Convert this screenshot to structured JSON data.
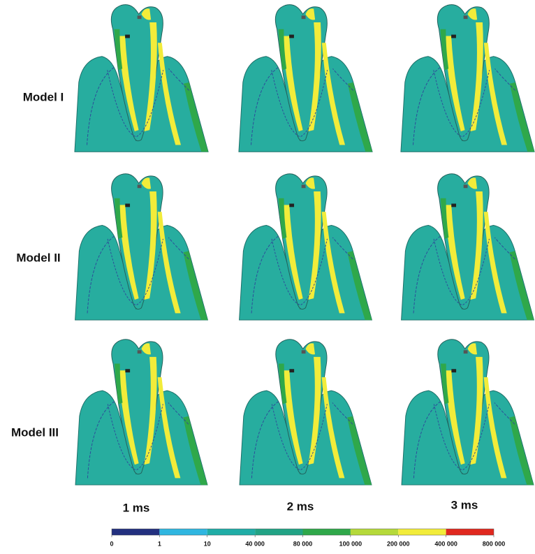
{
  "rows": [
    "Model I",
    "Model II",
    "Model III"
  ],
  "columns": [
    "1 ms",
    "2 ms",
    "3 ms"
  ],
  "legend": {
    "ticks": [
      {
        "value": 0,
        "label": "0"
      },
      {
        "value": 1,
        "label": "1"
      },
      {
        "value": 10,
        "label": "10"
      },
      {
        "value": 40000,
        "label": "40 000"
      },
      {
        "value": 80000,
        "label": "80 000"
      },
      {
        "value": 100000,
        "label": "100 000"
      },
      {
        "value": 200000,
        "label": "200 000"
      },
      {
        "value": 400000,
        "label": "400 000"
      },
      {
        "value": 800000,
        "label": "800 000"
      }
    ],
    "colors": [
      "#23307f",
      "#2fb6e0",
      "#20ada6",
      "#22a385",
      "#2fa84a",
      "#b5d93a",
      "#f2ec3a",
      "#e0281f"
    ]
  }
}
